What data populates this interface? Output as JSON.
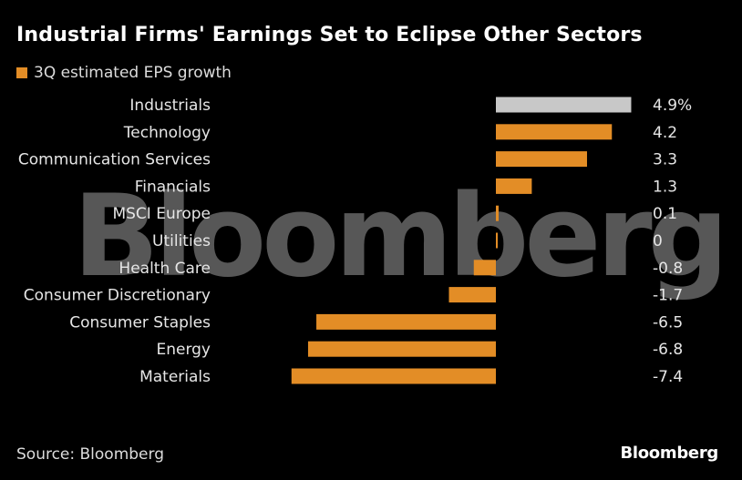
{
  "header": {
    "title": "Industrial Firms' Earnings Set to Eclipse Other Sectors"
  },
  "footer": {
    "source": "Source: Bloomberg",
    "brand": "Bloomberg"
  },
  "watermark": {
    "text": "Bloomberg"
  },
  "colors": {
    "bar": "#e38d26",
    "highlight": "#c8c8c8",
    "background": "#000000",
    "text": "#e6e6e6"
  },
  "chart_data": {
    "type": "bar",
    "orientation": "horizontal",
    "categories": [
      "Industrials",
      "Technology",
      "Communication Services",
      "Financials",
      "MSCI Europe",
      "Utilities",
      "Health Care",
      "Consumer Discretionary",
      "Consumer Staples",
      "Energy",
      "Materials"
    ],
    "series": [
      {
        "name": "3Q estimated EPS growth",
        "values": [
          4.9,
          4.2,
          3.3,
          1.3,
          0.1,
          0,
          -0.8,
          -1.7,
          -6.5,
          -6.8,
          -7.4
        ]
      }
    ],
    "value_labels": [
      "4.9%",
      "4.2",
      "3.3",
      "1.3",
      "0.1",
      "0",
      "-0.8",
      "-1.7",
      "-6.5",
      "-6.8",
      "-7.4"
    ],
    "highlight_category": "Industrials",
    "legend_position": "top-left",
    "grid": false
  }
}
